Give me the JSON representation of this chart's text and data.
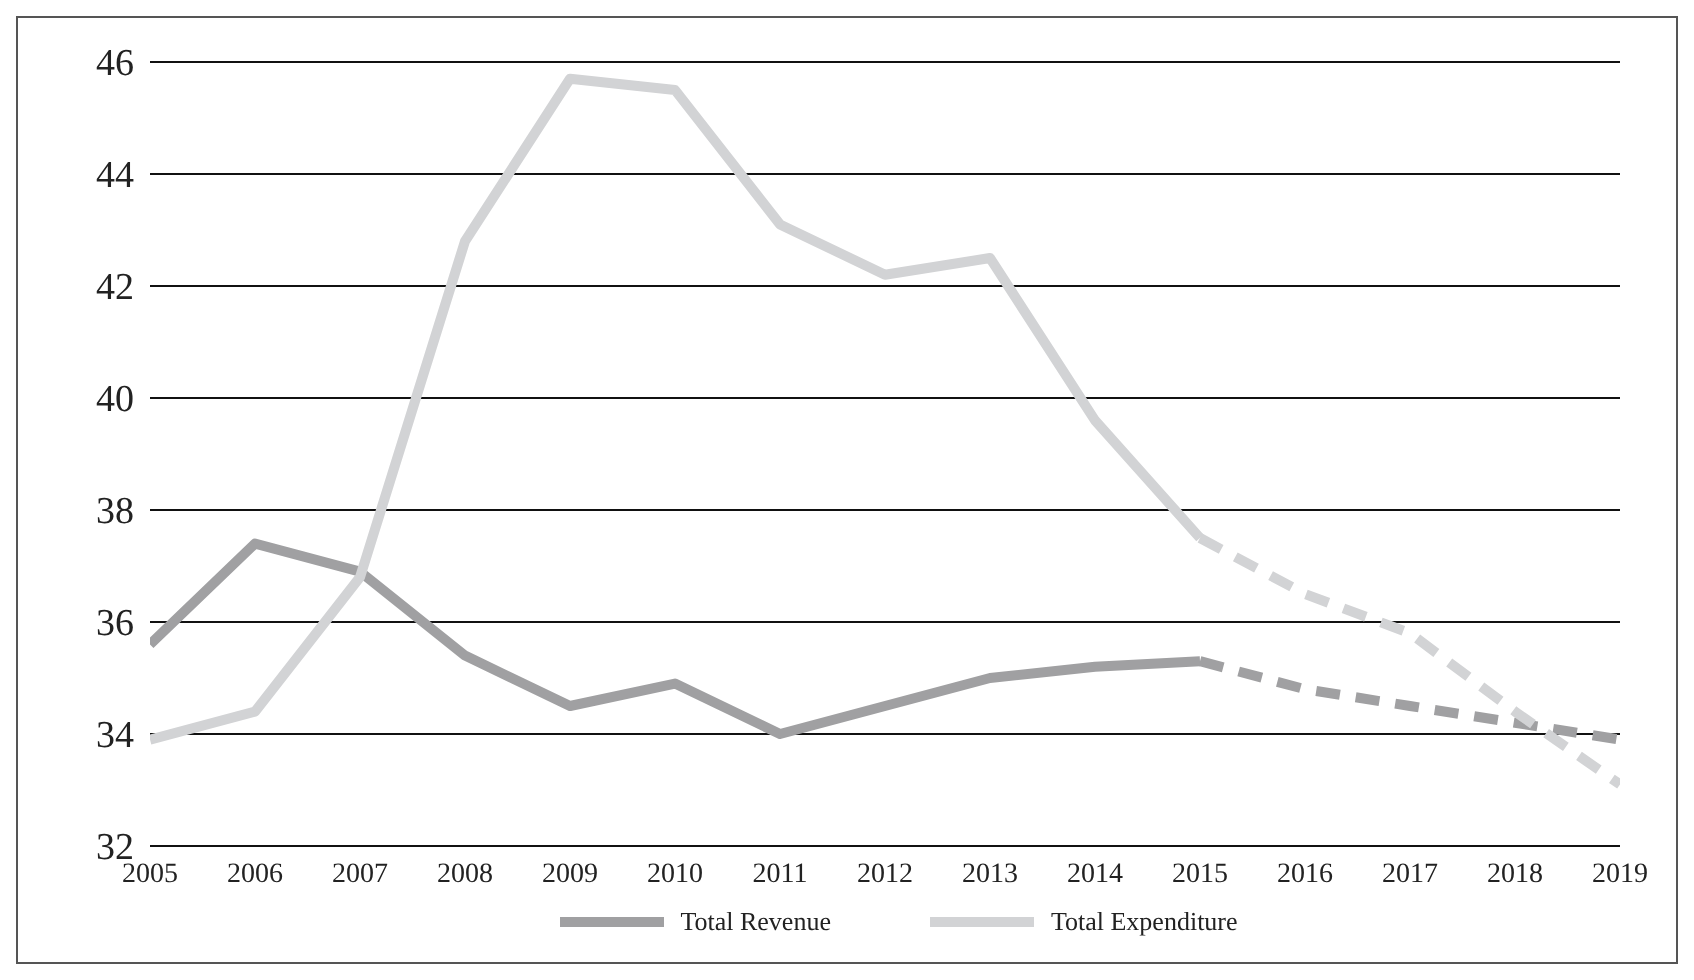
{
  "chart_data": {
    "type": "line",
    "xlim": [
      2005,
      2019
    ],
    "xticks": [
      2005,
      2006,
      2007,
      2008,
      2009,
      2010,
      2011,
      2012,
      2013,
      2014,
      2015,
      2016,
      2017,
      2018,
      2019
    ],
    "ylim": [
      32,
      46
    ],
    "yticks": [
      32,
      34,
      36,
      38,
      40,
      42,
      44,
      46
    ],
    "grid": "y",
    "legend": "bottom",
    "marker": "none",
    "series": [
      {
        "name": "Total Revenue",
        "color": "#a0a0a2",
        "line_style": "solid",
        "x": [
          2005,
          2006,
          2007,
          2008,
          2009,
          2010,
          2011,
          2012,
          2013,
          2014,
          2015
        ],
        "values": [
          35.6,
          37.4,
          36.9,
          35.4,
          34.5,
          34.9,
          34.0,
          34.5,
          35.0,
          35.2,
          35.3
        ]
      },
      {
        "name": "Total Expenditure",
        "color": "#d2d3d5",
        "line_style": "solid",
        "x": [
          2005,
          2006,
          2007,
          2008,
          2009,
          2010,
          2011,
          2012,
          2013,
          2014,
          2015
        ],
        "values": [
          33.9,
          34.4,
          36.8,
          42.8,
          45.7,
          45.5,
          43.1,
          42.2,
          42.5,
          39.6,
          37.5
        ]
      },
      {
        "color": "#a0a0a2",
        "line_style": "dashed",
        "x": [
          2015,
          2016,
          2017,
          2018,
          2019
        ],
        "values": [
          35.3,
          34.8,
          34.5,
          34.2,
          33.9
        ]
      },
      {
        "color": "#d2d3d5",
        "line_style": "dashed",
        "x": [
          2015,
          2016,
          2017,
          2018,
          2019
        ],
        "values": [
          37.5,
          36.5,
          35.8,
          34.4,
          33.1
        ]
      }
    ]
  }
}
